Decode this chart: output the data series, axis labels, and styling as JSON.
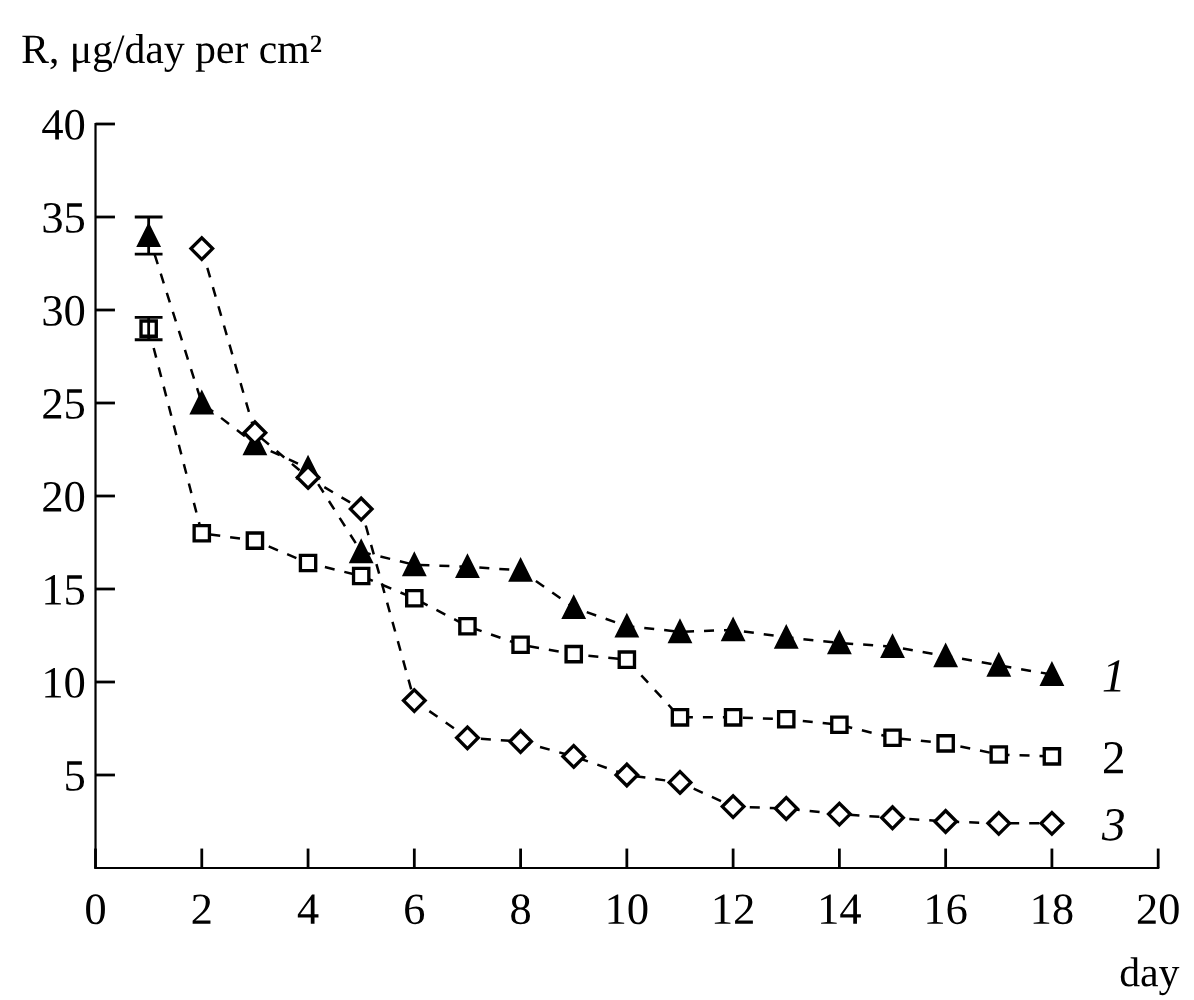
{
  "chart_data": {
    "type": "line",
    "ylabel": "R, μg/day per cm²",
    "xlabel": "day",
    "xlim": [
      0,
      20
    ],
    "xticks": [
      0,
      2,
      4,
      6,
      8,
      10,
      12,
      14,
      16,
      18,
      20
    ],
    "ylim": [
      0,
      40
    ],
    "yticks": [
      5,
      10,
      15,
      20,
      25,
      30,
      35,
      40
    ],
    "grid": false,
    "legend": false,
    "line_style": "dashed",
    "series": [
      {
        "name": "1",
        "color": "#000000",
        "marker": "triangle",
        "x": [
          1,
          2,
          3,
          4,
          5,
          6,
          7,
          8,
          9,
          10,
          11,
          12,
          13,
          14,
          15,
          16,
          17,
          18
        ],
        "values": [
          34,
          25,
          22.8,
          21.5,
          17,
          16.3,
          16.2,
          16,
          14,
          13,
          12.7,
          12.8,
          12.4,
          12.1,
          11.9,
          11.4,
          10.9,
          10.4
        ],
        "errors": [
          [
            33,
            35
          ],
          null,
          null,
          null,
          null,
          null,
          null,
          null,
          null,
          null,
          null,
          null,
          null,
          null,
          null,
          null,
          null,
          null
        ]
      },
      {
        "name": "2",
        "color": "#000000",
        "marker": "square",
        "x": [
          1,
          2,
          3,
          4,
          5,
          6,
          7,
          8,
          9,
          10,
          11,
          12,
          13,
          14,
          15,
          16,
          17,
          18
        ],
        "values": [
          29,
          18,
          17.6,
          16.4,
          15.7,
          14.5,
          13,
          12,
          11.5,
          11.2,
          8.1,
          8.1,
          8,
          7.7,
          7,
          6.7,
          6.1,
          6
        ],
        "errors": [
          [
            28.4,
            29.6
          ],
          null,
          null,
          null,
          null,
          null,
          null,
          null,
          null,
          null,
          null,
          null,
          null,
          null,
          null,
          null,
          null,
          null
        ]
      },
      {
        "name": "3",
        "color": "#000000",
        "marker": "diamond",
        "x": [
          2,
          3,
          4,
          5,
          6,
          7,
          8,
          9,
          10,
          11,
          12,
          13,
          14,
          15,
          16,
          17,
          18
        ],
        "values": [
          33.3,
          23.4,
          21,
          19.3,
          9,
          7,
          6.8,
          6,
          5,
          4.6,
          3.3,
          3.2,
          2.9,
          2.7,
          2.5,
          2.4,
          2.4
        ]
      }
    ]
  }
}
